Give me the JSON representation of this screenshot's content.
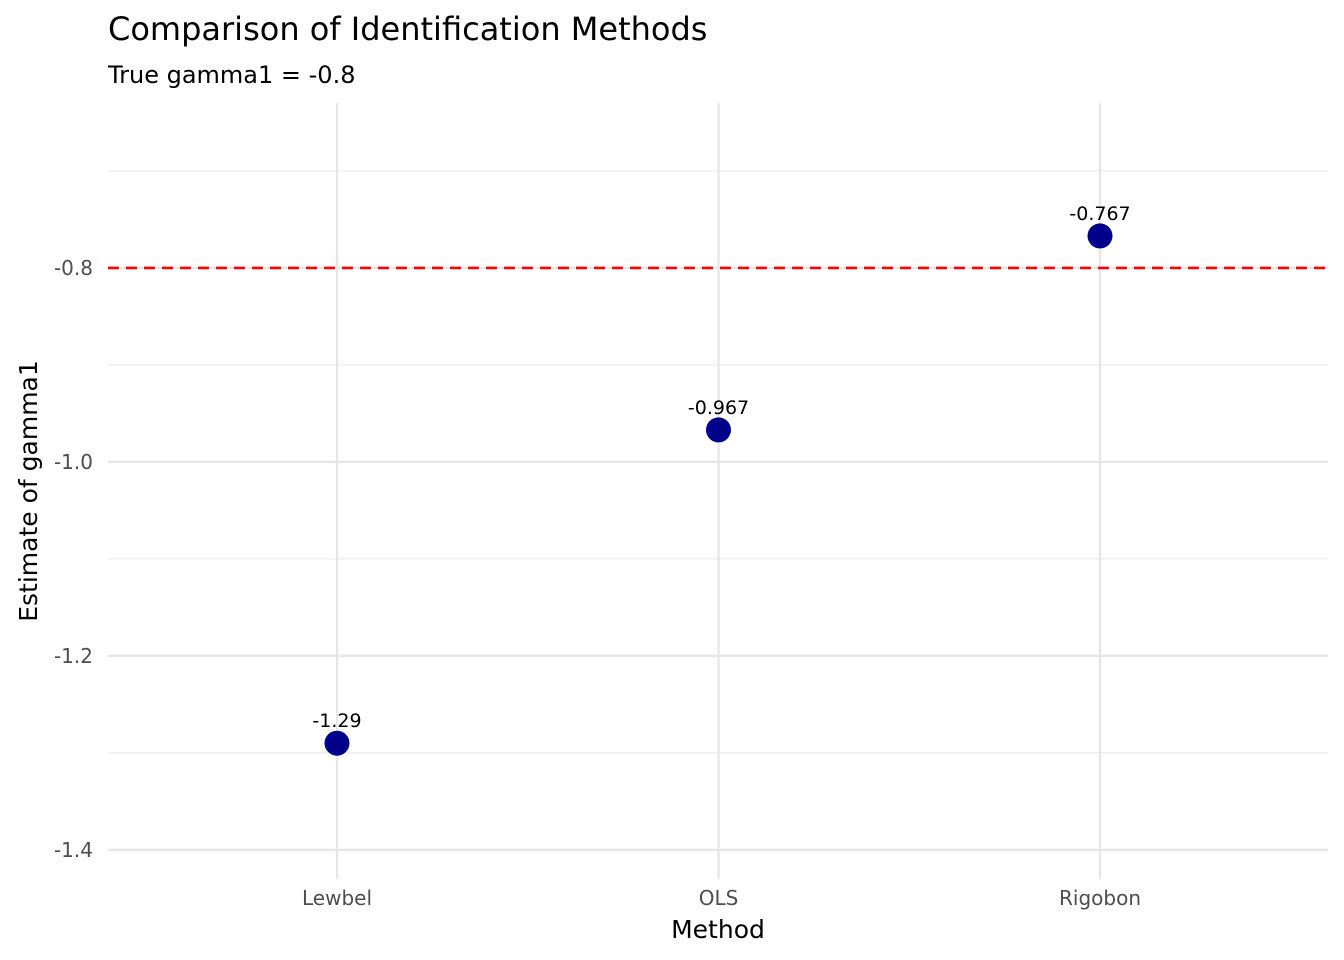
{
  "chart_data": {
    "type": "scatter",
    "title": "Comparison of Identification Methods",
    "subtitle": "True gamma1 = -0.8",
    "xlabel": "Method",
    "ylabel": "Estimate of gamma1",
    "categories": [
      "Lewbel",
      "OLS",
      "Rigobon"
    ],
    "series": [
      {
        "values": [
          -1.29,
          -0.967,
          -0.767
        ],
        "labels": [
          "-1.29",
          "-0.967",
          "-0.767"
        ],
        "color": "#00008b"
      }
    ],
    "reference_line": {
      "value": -0.8,
      "color": "#ff0000",
      "style": "dashed"
    },
    "ylim": [
      -1.43,
      -0.63
    ],
    "yticks": [
      -1.4,
      -1.2,
      -1.0,
      -0.8
    ],
    "ytick_labels": [
      "-1.4",
      "-1.2",
      "-1.0",
      "-0.8"
    ],
    "grid": true,
    "legend": "none"
  }
}
